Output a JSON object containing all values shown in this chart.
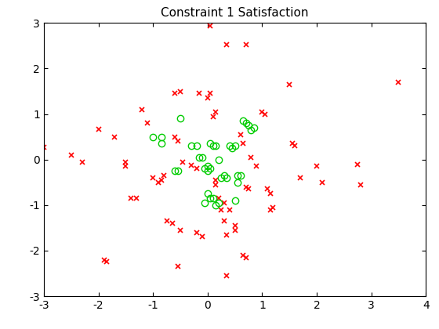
{
  "title": "Constraint 1 Satisfaction",
  "xlim": [
    -3,
    4
  ],
  "ylim": [
    -3,
    3
  ],
  "xticks": [
    -3,
    -2,
    -1,
    0,
    1,
    2,
    3,
    4
  ],
  "yticks": [
    -3,
    -2,
    -1,
    0,
    1,
    2,
    3
  ],
  "red_x": [
    [
      0.05,
      2.93
    ],
    [
      0.35,
      2.52
    ],
    [
      -3.0,
      0.27
    ],
    [
      -2.5,
      0.1
    ],
    [
      -2.0,
      0.67
    ],
    [
      -1.7,
      0.5
    ],
    [
      -1.5,
      -0.05
    ],
    [
      -1.5,
      -0.15
    ],
    [
      -1.4,
      -0.85
    ],
    [
      -1.3,
      -0.85
    ],
    [
      -1.2,
      1.1
    ],
    [
      -1.1,
      0.8
    ],
    [
      -1.0,
      -0.4
    ],
    [
      -0.9,
      -0.5
    ],
    [
      -0.85,
      -0.45
    ],
    [
      -0.8,
      -0.35
    ],
    [
      -0.75,
      -1.35
    ],
    [
      -0.65,
      -1.4
    ],
    [
      -0.6,
      1.45
    ],
    [
      -0.5,
      1.5
    ],
    [
      -0.5,
      -1.55
    ],
    [
      -0.45,
      -0.05
    ],
    [
      -0.3,
      -0.12
    ],
    [
      -0.2,
      -0.2
    ],
    [
      -0.15,
      1.45
    ],
    [
      0.0,
      1.35
    ],
    [
      0.05,
      1.45
    ],
    [
      0.1,
      0.95
    ],
    [
      0.15,
      1.05
    ],
    [
      0.15,
      -0.45
    ],
    [
      0.15,
      -0.55
    ],
    [
      0.2,
      -0.85
    ],
    [
      0.3,
      -0.95
    ],
    [
      0.3,
      -1.35
    ],
    [
      0.35,
      -1.65
    ],
    [
      0.5,
      -1.45
    ],
    [
      0.5,
      -1.55
    ],
    [
      0.6,
      0.55
    ],
    [
      0.65,
      0.35
    ],
    [
      0.7,
      -0.6
    ],
    [
      0.75,
      -0.65
    ],
    [
      0.8,
      0.05
    ],
    [
      0.9,
      -0.15
    ],
    [
      1.0,
      1.05
    ],
    [
      1.05,
      1.0
    ],
    [
      1.1,
      -0.65
    ],
    [
      1.15,
      -0.75
    ],
    [
      1.15,
      -1.1
    ],
    [
      1.2,
      -1.05
    ],
    [
      1.5,
      1.65
    ],
    [
      1.55,
      0.35
    ],
    [
      1.6,
      0.3
    ],
    [
      1.7,
      -0.4
    ],
    [
      2.0,
      -0.15
    ],
    [
      2.1,
      -0.5
    ],
    [
      2.75,
      -0.1
    ],
    [
      2.8,
      -0.55
    ],
    [
      3.5,
      1.7
    ],
    [
      -1.85,
      -2.25
    ],
    [
      -1.9,
      -2.2
    ],
    [
      -0.55,
      -2.35
    ],
    [
      0.35,
      -2.55
    ],
    [
      0.65,
      -2.1
    ],
    [
      0.7,
      -2.15
    ],
    [
      0.7,
      2.52
    ],
    [
      -0.2,
      -1.6
    ],
    [
      -0.1,
      -1.7
    ],
    [
      0.25,
      -1.1
    ],
    [
      0.4,
      -1.1
    ],
    [
      -2.3,
      -0.05
    ],
    [
      -0.6,
      0.5
    ],
    [
      -0.55,
      0.4
    ]
  ],
  "green_o": [
    [
      -1.0,
      0.5
    ],
    [
      -0.85,
      0.5
    ],
    [
      -0.85,
      0.35
    ],
    [
      -0.5,
      0.9
    ],
    [
      -0.3,
      0.3
    ],
    [
      -0.2,
      0.3
    ],
    [
      -0.15,
      0.05
    ],
    [
      -0.1,
      0.05
    ],
    [
      -0.05,
      -0.2
    ],
    [
      0.0,
      -0.15
    ],
    [
      0.0,
      -0.25
    ],
    [
      0.05,
      -0.2
    ],
    [
      0.05,
      0.35
    ],
    [
      0.1,
      0.3
    ],
    [
      0.15,
      0.3
    ],
    [
      0.2,
      0.0
    ],
    [
      0.25,
      -0.4
    ],
    [
      0.3,
      -0.35
    ],
    [
      0.35,
      -0.4
    ],
    [
      0.4,
      0.3
    ],
    [
      0.45,
      0.25
    ],
    [
      0.5,
      0.3
    ],
    [
      0.55,
      -0.35
    ],
    [
      0.6,
      -0.35
    ],
    [
      0.65,
      0.85
    ],
    [
      0.7,
      0.8
    ],
    [
      0.75,
      0.75
    ],
    [
      0.8,
      0.65
    ],
    [
      0.85,
      0.7
    ],
    [
      0.0,
      -0.75
    ],
    [
      0.05,
      -0.85
    ],
    [
      0.1,
      -0.85
    ],
    [
      0.15,
      -1.0
    ],
    [
      0.2,
      -0.95
    ],
    [
      -0.05,
      -0.95
    ],
    [
      0.5,
      -0.9
    ],
    [
      0.55,
      -0.5
    ],
    [
      -0.55,
      -0.25
    ],
    [
      -0.6,
      -0.25
    ]
  ],
  "red_color": "#ff0000",
  "green_color": "#00cc00",
  "marker_red": "x",
  "marker_green": "o",
  "markersize_red": 5,
  "markersize_green": 6,
  "markeredgewidth_red": 1.2,
  "markeredgewidth_green": 1.0,
  "title_fontsize": 11,
  "tick_fontsize": 10,
  "figsize": [
    5.6,
    4.2
  ],
  "dpi": 100
}
